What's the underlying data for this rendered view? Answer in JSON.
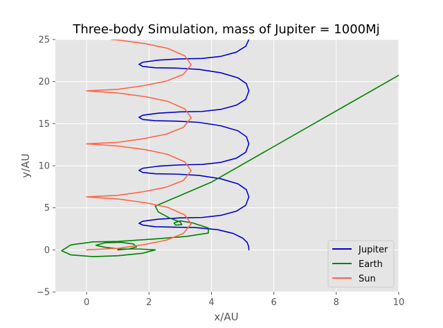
{
  "chart_data": {
    "type": "line",
    "title": "Three-body Simulation, mass of Jupiter = 1000Mj",
    "xlabel": "x/AU",
    "ylabel": "y/AU",
    "xlim": [
      -1,
      10
    ],
    "ylim": [
      -5,
      25
    ],
    "xticks": [
      0,
      2,
      4,
      6,
      8,
      10
    ],
    "yticks": [
      -5,
      0,
      5,
      10,
      15,
      20,
      25
    ],
    "grid": true,
    "legend_position": "lower-right",
    "background": "#E5E5E5",
    "series": [
      {
        "name": "Jupiter",
        "color": "#0000CC",
        "points": [
          [
            5.2,
            0.0
          ],
          [
            5.19,
            0.45
          ],
          [
            5.14,
            0.9
          ],
          [
            5.0,
            1.4
          ],
          [
            4.7,
            1.95
          ],
          [
            4.2,
            2.4
          ],
          [
            3.5,
            2.65
          ],
          [
            2.8,
            2.7
          ],
          [
            2.2,
            2.75
          ],
          [
            1.8,
            2.95
          ],
          [
            1.68,
            3.15
          ],
          [
            1.8,
            3.4
          ],
          [
            2.3,
            3.65
          ],
          [
            3.0,
            3.8
          ],
          [
            3.7,
            3.85
          ],
          [
            4.3,
            4.1
          ],
          [
            4.8,
            4.6
          ],
          [
            5.1,
            5.3
          ],
          [
            5.2,
            6.3
          ],
          [
            5.12,
            7.15
          ],
          [
            4.85,
            7.85
          ],
          [
            4.3,
            8.45
          ],
          [
            3.6,
            8.85
          ],
          [
            2.9,
            9.0
          ],
          [
            2.2,
            9.05
          ],
          [
            1.8,
            9.2
          ],
          [
            1.68,
            9.45
          ],
          [
            1.8,
            9.7
          ],
          [
            2.3,
            9.95
          ],
          [
            3.0,
            10.1
          ],
          [
            3.7,
            10.15
          ],
          [
            4.3,
            10.4
          ],
          [
            4.8,
            10.9
          ],
          [
            5.1,
            11.6
          ],
          [
            5.2,
            12.6
          ],
          [
            5.12,
            13.45
          ],
          [
            4.85,
            14.15
          ],
          [
            4.3,
            14.75
          ],
          [
            3.6,
            15.15
          ],
          [
            2.9,
            15.3
          ],
          [
            2.2,
            15.35
          ],
          [
            1.8,
            15.5
          ],
          [
            1.68,
            15.75
          ],
          [
            1.8,
            16.0
          ],
          [
            2.3,
            16.25
          ],
          [
            3.0,
            16.4
          ],
          [
            3.7,
            16.45
          ],
          [
            4.3,
            16.7
          ],
          [
            4.8,
            17.2
          ],
          [
            5.1,
            17.9
          ],
          [
            5.2,
            18.9
          ],
          [
            5.12,
            19.75
          ],
          [
            4.85,
            20.45
          ],
          [
            4.3,
            21.05
          ],
          [
            3.6,
            21.45
          ],
          [
            2.9,
            21.6
          ],
          [
            2.2,
            21.65
          ],
          [
            1.8,
            21.8
          ],
          [
            1.68,
            22.05
          ],
          [
            1.8,
            22.3
          ],
          [
            2.3,
            22.55
          ],
          [
            3.0,
            22.7
          ],
          [
            3.7,
            22.75
          ],
          [
            4.3,
            23.0
          ],
          [
            4.8,
            23.5
          ],
          [
            5.1,
            24.2
          ],
          [
            5.2,
            25.0
          ]
        ]
      },
      {
        "name": "Earth",
        "color": "#008000",
        "points": [
          [
            1.0,
            0.0
          ],
          [
            1.35,
            0.1
          ],
          [
            1.6,
            0.35
          ],
          [
            1.5,
            0.7
          ],
          [
            1.1,
            0.9
          ],
          [
            0.6,
            0.85
          ],
          [
            0.3,
            0.55
          ],
          [
            0.6,
            0.3
          ],
          [
            1.1,
            0.1
          ],
          [
            1.7,
            0.1
          ],
          [
            2.2,
            0.0
          ],
          [
            1.8,
            -0.4
          ],
          [
            1.0,
            -0.7
          ],
          [
            0.2,
            -0.8
          ],
          [
            -0.5,
            -0.6
          ],
          [
            -0.8,
            -0.1
          ],
          [
            -0.5,
            0.6
          ],
          [
            0.2,
            0.95
          ],
          [
            1.0,
            1.0
          ],
          [
            2.2,
            1.3
          ],
          [
            3.2,
            1.6
          ],
          [
            3.9,
            2.0
          ],
          [
            3.9,
            2.6
          ],
          [
            3.4,
            3.2
          ],
          [
            3.0,
            3.45
          ],
          [
            2.8,
            3.2
          ],
          [
            2.85,
            2.95
          ],
          [
            3.05,
            3.0
          ],
          [
            3.0,
            3.3
          ],
          [
            2.65,
            3.8
          ],
          [
            2.3,
            4.5
          ],
          [
            2.2,
            5.2
          ],
          [
            4.0,
            8.05
          ],
          [
            10.0,
            20.75
          ]
        ]
      },
      {
        "name": "Sun",
        "color": "#FF6347",
        "points": [
          [
            0.0,
            0.0
          ],
          [
            1.0,
            0.18
          ],
          [
            1.8,
            0.6
          ],
          [
            2.55,
            1.15
          ],
          [
            3.1,
            1.95
          ],
          [
            3.35,
            3.1
          ],
          [
            3.15,
            4.15
          ],
          [
            2.6,
            5.05
          ],
          [
            1.9,
            5.6
          ],
          [
            1.0,
            6.05
          ],
          [
            0.0,
            6.3
          ],
          [
            1.0,
            6.48
          ],
          [
            1.8,
            6.9
          ],
          [
            2.55,
            7.45
          ],
          [
            3.1,
            8.25
          ],
          [
            3.35,
            9.4
          ],
          [
            3.15,
            10.45
          ],
          [
            2.6,
            11.35
          ],
          [
            1.9,
            11.9
          ],
          [
            1.0,
            12.35
          ],
          [
            0.0,
            12.6
          ],
          [
            1.0,
            12.78
          ],
          [
            1.8,
            13.2
          ],
          [
            2.55,
            13.75
          ],
          [
            3.1,
            14.55
          ],
          [
            3.35,
            15.7
          ],
          [
            3.15,
            16.75
          ],
          [
            2.6,
            17.65
          ],
          [
            1.9,
            18.2
          ],
          [
            1.0,
            18.65
          ],
          [
            0.0,
            18.9
          ],
          [
            1.0,
            19.08
          ],
          [
            1.8,
            19.5
          ],
          [
            2.55,
            20.05
          ],
          [
            3.1,
            20.85
          ],
          [
            3.35,
            22.0
          ],
          [
            3.15,
            23.05
          ],
          [
            2.6,
            23.95
          ],
          [
            1.9,
            24.5
          ],
          [
            1.0,
            24.95
          ],
          [
            0.8,
            25.0
          ]
        ]
      }
    ]
  }
}
